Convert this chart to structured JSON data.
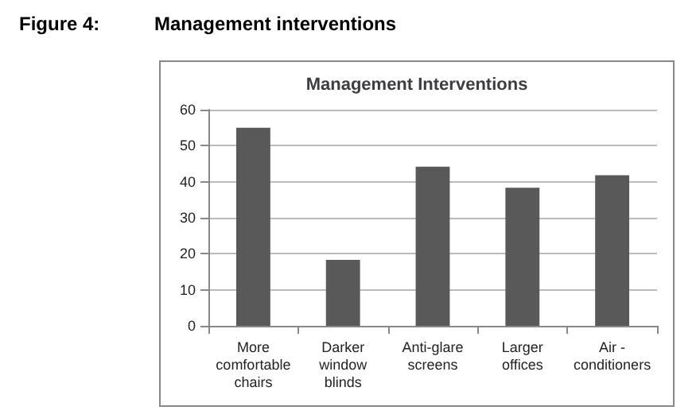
{
  "chart_data": {
    "type": "bar",
    "title": "Management Interventions",
    "annotations": [
      "Figure 4:",
      "Management interventions"
    ],
    "categories": [
      "More comfortable chairs",
      "Darker window blinds",
      "Anti-glare screens",
      "Larger offices",
      "Air - conditioners"
    ],
    "values": [
      55,
      18.3,
      44.2,
      38.3,
      41.8
    ],
    "color": "#595959",
    "ylim": [
      0,
      60
    ],
    "yticks": [
      0,
      10,
      20,
      30,
      40,
      50,
      60
    ],
    "grid": "y"
  }
}
